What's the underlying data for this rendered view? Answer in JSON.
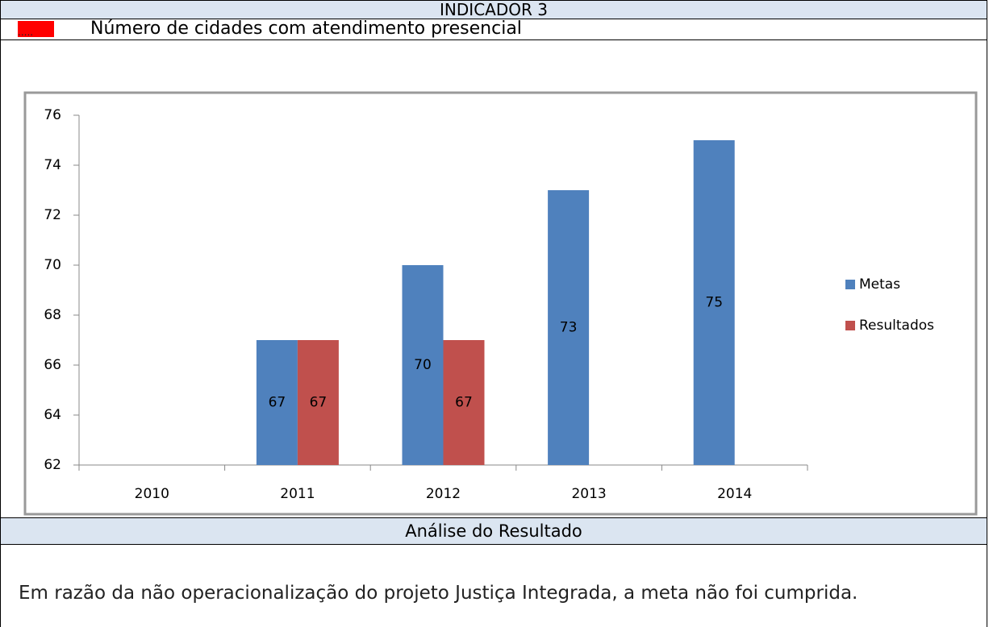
{
  "header": {
    "title": "INDICADOR 3",
    "marker": ".....",
    "subtitle": "Número de cidades com atendimento presencial"
  },
  "chart_data": {
    "type": "bar",
    "categories": [
      "2010",
      "2011",
      "2012",
      "2013",
      "2014"
    ],
    "series": [
      {
        "name": "Metas",
        "color": "#4f81bd",
        "values": [
          null,
          67,
          70,
          73,
          75
        ]
      },
      {
        "name": "Resultados",
        "color": "#c0504d",
        "values": [
          null,
          67,
          67,
          null,
          null
        ]
      }
    ],
    "ylim": [
      62,
      76
    ],
    "yticks": [
      62,
      64,
      66,
      68,
      70,
      72,
      74,
      76
    ],
    "legend": "right"
  },
  "analysis": {
    "title": "Análise do Resultado",
    "text": "Em razão da não operacionalização do projeto Justiça Integrada, a meta não foi cumprida."
  }
}
